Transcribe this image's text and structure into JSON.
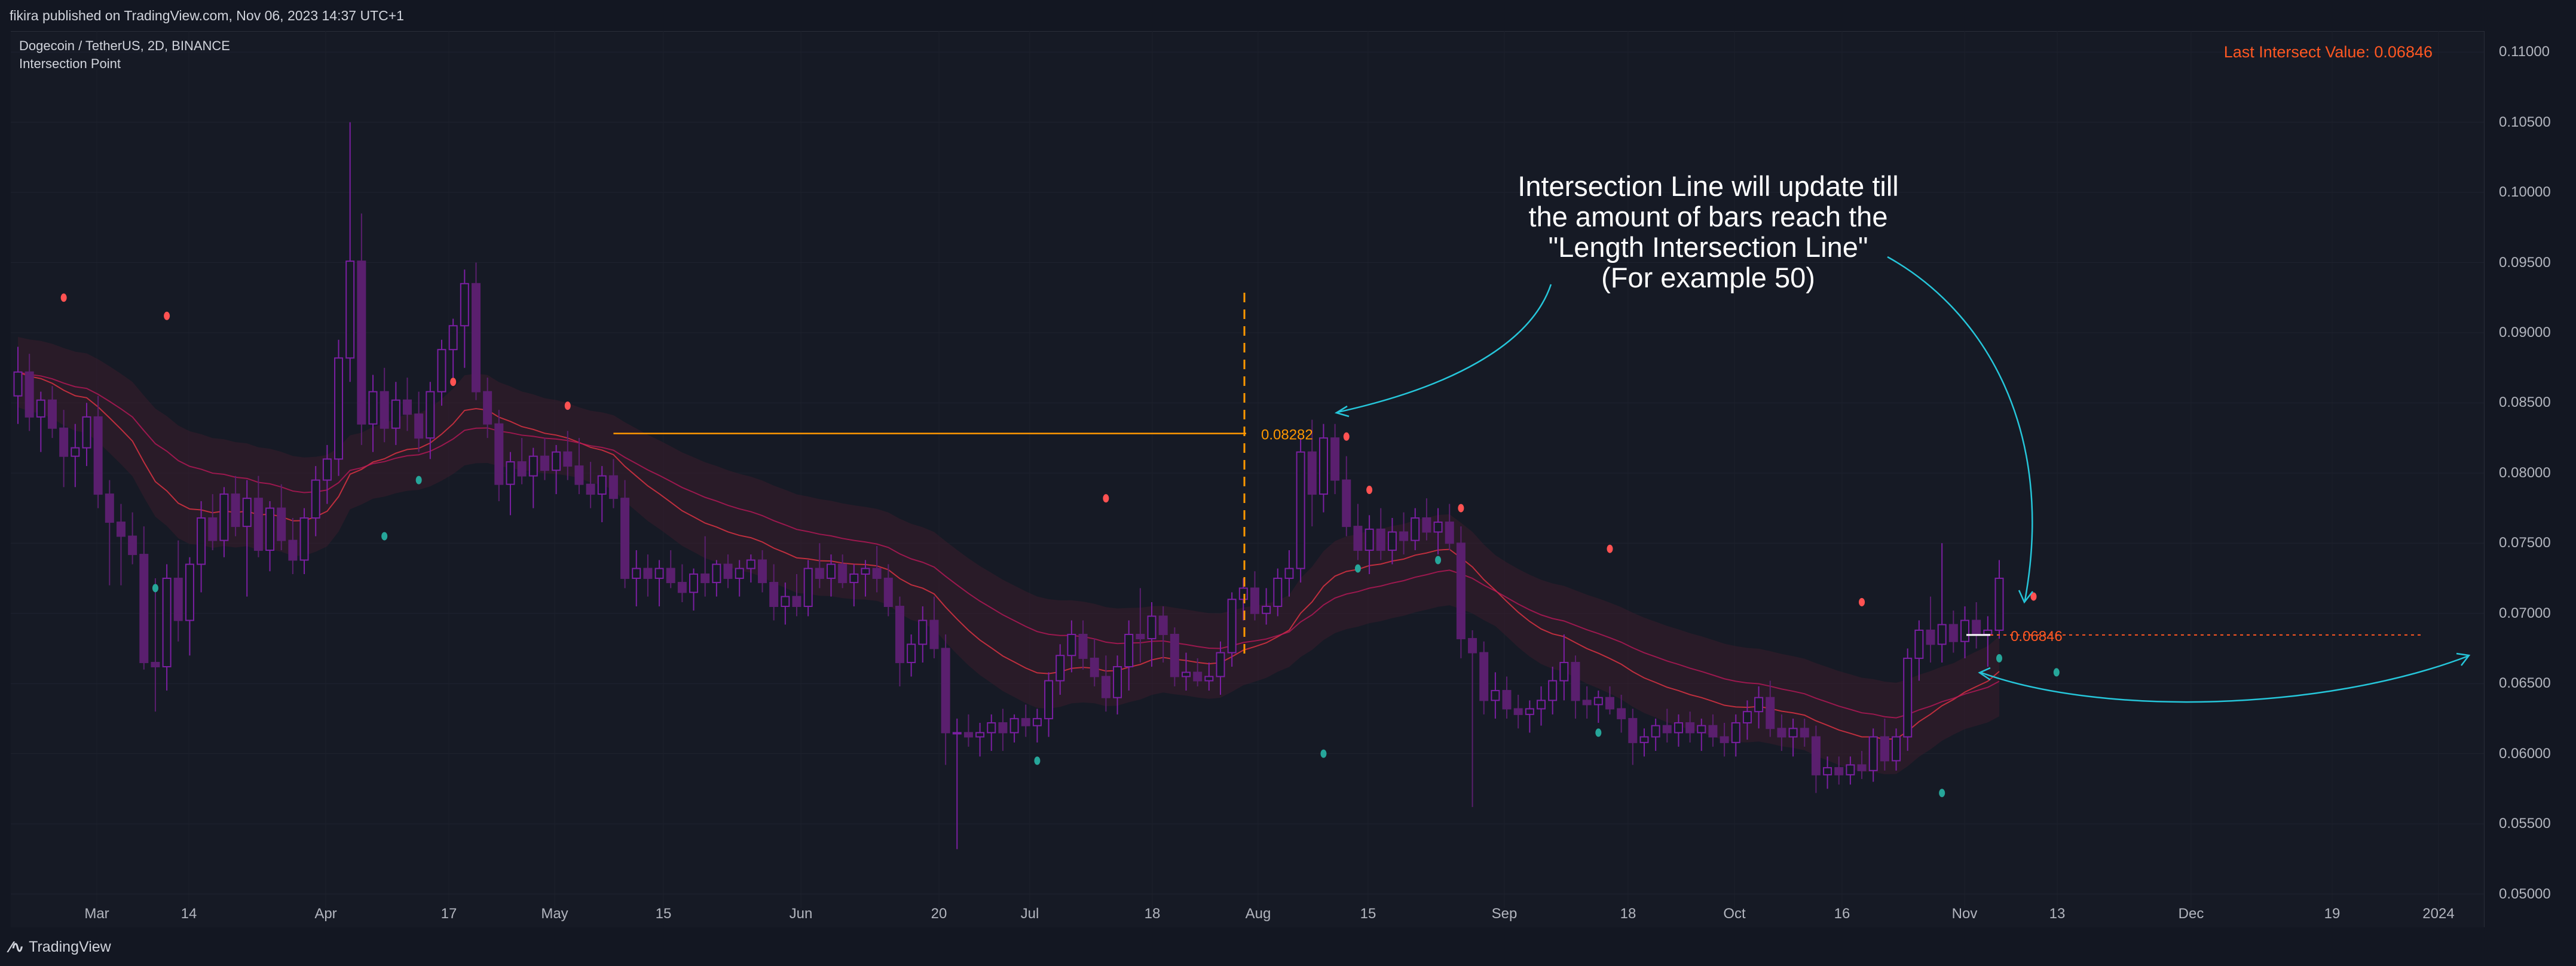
{
  "header": {
    "published": "fikira published on TradingView.com, Nov 06, 2023 14:37 UTC+1"
  },
  "legend": {
    "symbol": "Dogecoin / TetherUS, 2D, BINANCE",
    "indicator": "Intersection Point"
  },
  "last_intersect": "Last Intersect Value: 0.06846",
  "footer": {
    "brand": "TradingView",
    "logo": "tradingview-logo-icon"
  },
  "colors": {
    "bull": "#7b1fa2",
    "bear": "#5a1f6e",
    "fill_red": "#3a1d2c",
    "fill_green": "#133a35",
    "ema": "#f23645",
    "orange": "#ff9800",
    "intersect": "#ff5722",
    "cyan": "#26c6da",
    "teal": "#26a69a",
    "red_dot": "#ff5252"
  },
  "annotation": {
    "lines": [
      "Intersection Line will update till",
      "the amount of bars reach the",
      "\"Length Intersection Line\"",
      "(For example 50)"
    ]
  },
  "price_labels": {
    "intersection_high": "0.08282",
    "intersection_low": "0.06846"
  },
  "chart_data": {
    "type": "candlestick",
    "title": "Dogecoin / TetherUS, 2D, BINANCE",
    "indicator": "Intersection Point",
    "timeframe": "2D",
    "ylim": [
      0.049,
      0.1115
    ],
    "yticks": [
      "0.11000",
      "0.10500",
      "0.10000",
      "0.09500",
      "0.09000",
      "0.08500",
      "0.08000",
      "0.07500",
      "0.07000",
      "0.06500",
      "0.06000",
      "0.05500",
      "0.05000"
    ],
    "xticks": [
      "Mar",
      "14",
      "Apr",
      "17",
      "May",
      "15",
      "Jun",
      "20",
      "Jul",
      "18",
      "Aug",
      "15",
      "Sep",
      "18",
      "Oct",
      "16",
      "Nov",
      "13",
      "Dec",
      "19",
      "2024"
    ],
    "grid": true,
    "candles": [
      [
        0.0855,
        0.089,
        0.0835,
        0.0872
      ],
      [
        0.0872,
        0.0885,
        0.083,
        0.084
      ],
      [
        0.084,
        0.0858,
        0.0815,
        0.0852
      ],
      [
        0.0852,
        0.0862,
        0.0825,
        0.0832
      ],
      [
        0.0832,
        0.0845,
        0.079,
        0.0812
      ],
      [
        0.0812,
        0.0835,
        0.079,
        0.0818
      ],
      [
        0.0818,
        0.085,
        0.0805,
        0.084
      ],
      [
        0.084,
        0.0855,
        0.0775,
        0.0785
      ],
      [
        0.0785,
        0.0795,
        0.072,
        0.0765
      ],
      [
        0.0765,
        0.0778,
        0.072,
        0.0755
      ],
      [
        0.0755,
        0.0772,
        0.0735,
        0.0742
      ],
      [
        0.0742,
        0.0762,
        0.066,
        0.0665
      ],
      [
        0.0665,
        0.0725,
        0.063,
        0.0662
      ],
      [
        0.0662,
        0.0735,
        0.0645,
        0.0725
      ],
      [
        0.0725,
        0.0752,
        0.068,
        0.0695
      ],
      [
        0.0695,
        0.074,
        0.067,
        0.0735
      ],
      [
        0.0735,
        0.078,
        0.0715,
        0.0768
      ],
      [
        0.0768,
        0.0785,
        0.0745,
        0.0752
      ],
      [
        0.0752,
        0.079,
        0.074,
        0.0785
      ],
      [
        0.0785,
        0.0798,
        0.0755,
        0.0762
      ],
      [
        0.0762,
        0.0795,
        0.0712,
        0.0782
      ],
      [
        0.0782,
        0.0798,
        0.074,
        0.0745
      ],
      [
        0.0745,
        0.078,
        0.073,
        0.0775
      ],
      [
        0.0775,
        0.0792,
        0.0745,
        0.0752
      ],
      [
        0.0752,
        0.0768,
        0.0728,
        0.0738
      ],
      [
        0.0738,
        0.0775,
        0.0728,
        0.0768
      ],
      [
        0.0768,
        0.0805,
        0.0755,
        0.0795
      ],
      [
        0.0795,
        0.082,
        0.0778,
        0.081
      ],
      [
        0.081,
        0.0895,
        0.0798,
        0.0882
      ],
      [
        0.0882,
        0.105,
        0.0865,
        0.0951
      ],
      [
        0.0951,
        0.0985,
        0.082,
        0.0835
      ],
      [
        0.0835,
        0.087,
        0.0815,
        0.0858
      ],
      [
        0.0858,
        0.0875,
        0.0822,
        0.0832
      ],
      [
        0.0832,
        0.0865,
        0.082,
        0.0852
      ],
      [
        0.0852,
        0.0868,
        0.083,
        0.0842
      ],
      [
        0.0842,
        0.0858,
        0.0815,
        0.0825
      ],
      [
        0.0825,
        0.0865,
        0.081,
        0.0858
      ],
      [
        0.0858,
        0.0895,
        0.0848,
        0.0888
      ],
      [
        0.0888,
        0.091,
        0.0868,
        0.0905
      ],
      [
        0.0905,
        0.0945,
        0.0875,
        0.0935
      ],
      [
        0.0935,
        0.095,
        0.0852,
        0.0858
      ],
      [
        0.0858,
        0.0868,
        0.0825,
        0.0835
      ],
      [
        0.0835,
        0.0845,
        0.078,
        0.0792
      ],
      [
        0.0792,
        0.0815,
        0.077,
        0.0808
      ],
      [
        0.0808,
        0.0825,
        0.0792,
        0.0798
      ],
      [
        0.0798,
        0.0818,
        0.0775,
        0.0812
      ],
      [
        0.0812,
        0.0825,
        0.0795,
        0.0802
      ],
      [
        0.0802,
        0.082,
        0.0785,
        0.0815
      ],
      [
        0.0815,
        0.083,
        0.0795,
        0.0805
      ],
      [
        0.0805,
        0.0825,
        0.0785,
        0.0792
      ],
      [
        0.0792,
        0.0808,
        0.0775,
        0.0785
      ],
      [
        0.0785,
        0.0805,
        0.0765,
        0.0798
      ],
      [
        0.0798,
        0.081,
        0.0775,
        0.0782
      ],
      [
        0.0782,
        0.0795,
        0.0718,
        0.0725
      ],
      [
        0.0725,
        0.0745,
        0.0705,
        0.0732
      ],
      [
        0.0732,
        0.0742,
        0.0712,
        0.0725
      ],
      [
        0.0725,
        0.0738,
        0.0705,
        0.0732
      ],
      [
        0.0732,
        0.0745,
        0.0718,
        0.0722
      ],
      [
        0.0722,
        0.0735,
        0.0708,
        0.0715
      ],
      [
        0.0715,
        0.0732,
        0.0702,
        0.0728
      ],
      [
        0.0728,
        0.0755,
        0.0712,
        0.0722
      ],
      [
        0.0722,
        0.0738,
        0.0712,
        0.0735
      ],
      [
        0.0735,
        0.0742,
        0.0718,
        0.0725
      ],
      [
        0.0725,
        0.0738,
        0.0712,
        0.0732
      ],
      [
        0.0732,
        0.0742,
        0.0722,
        0.0738
      ],
      [
        0.0738,
        0.0745,
        0.0715,
        0.0722
      ],
      [
        0.0722,
        0.0735,
        0.0695,
        0.0705
      ],
      [
        0.0705,
        0.0722,
        0.0692,
        0.0712
      ],
      [
        0.0712,
        0.0728,
        0.0698,
        0.0705
      ],
      [
        0.0705,
        0.0738,
        0.0698,
        0.0732
      ],
      [
        0.0732,
        0.075,
        0.0718,
        0.0725
      ],
      [
        0.0725,
        0.0742,
        0.0712,
        0.0735
      ],
      [
        0.0735,
        0.0742,
        0.0718,
        0.0722
      ],
      [
        0.0722,
        0.0735,
        0.0705,
        0.0728
      ],
      [
        0.0728,
        0.0738,
        0.0712,
        0.0732
      ],
      [
        0.0732,
        0.0748,
        0.0715,
        0.0725
      ],
      [
        0.0725,
        0.0735,
        0.0698,
        0.0705
      ],
      [
        0.0705,
        0.0712,
        0.0648,
        0.0665
      ],
      [
        0.0665,
        0.0685,
        0.0655,
        0.0678
      ],
      [
        0.0678,
        0.0705,
        0.0665,
        0.0695
      ],
      [
        0.0695,
        0.0712,
        0.0668,
        0.0675
      ],
      [
        0.0675,
        0.0685,
        0.0592,
        0.0615
      ],
      [
        0.0615,
        0.0625,
        0.0532,
        0.0615
      ],
      [
        0.0615,
        0.0628,
        0.0605,
        0.0612
      ],
      [
        0.0612,
        0.0622,
        0.0598,
        0.0615
      ],
      [
        0.0615,
        0.0628,
        0.0602,
        0.0622
      ],
      [
        0.0622,
        0.0632,
        0.0602,
        0.0615
      ],
      [
        0.0615,
        0.0628,
        0.0608,
        0.0625
      ],
      [
        0.0625,
        0.0635,
        0.0612,
        0.062
      ],
      [
        0.062,
        0.0632,
        0.0608,
        0.0625
      ],
      [
        0.0625,
        0.0658,
        0.0612,
        0.0652
      ],
      [
        0.0652,
        0.0678,
        0.0642,
        0.067
      ],
      [
        0.067,
        0.0695,
        0.0658,
        0.0685
      ],
      [
        0.0685,
        0.0695,
        0.066,
        0.0668
      ],
      [
        0.0668,
        0.0682,
        0.0648,
        0.0655
      ],
      [
        0.0655,
        0.067,
        0.063,
        0.064
      ],
      [
        0.064,
        0.067,
        0.0628,
        0.0662
      ],
      [
        0.0662,
        0.0695,
        0.0645,
        0.0685
      ],
      [
        0.0685,
        0.0718,
        0.0665,
        0.0682
      ],
      [
        0.0682,
        0.0708,
        0.0662,
        0.0698
      ],
      [
        0.0698,
        0.0705,
        0.0665,
        0.0685
      ],
      [
        0.0685,
        0.069,
        0.0648,
        0.0655
      ],
      [
        0.0655,
        0.0672,
        0.0645,
        0.0658
      ],
      [
        0.0658,
        0.0668,
        0.0648,
        0.0652
      ],
      [
        0.0652,
        0.0665,
        0.0645,
        0.0655
      ],
      [
        0.0655,
        0.068,
        0.0642,
        0.0672
      ],
      [
        0.0672,
        0.0715,
        0.0662,
        0.071
      ],
      [
        0.071,
        0.0725,
        0.0695,
        0.0718
      ],
      [
        0.0718,
        0.073,
        0.0695,
        0.07
      ],
      [
        0.07,
        0.0718,
        0.0692,
        0.0705
      ],
      [
        0.0705,
        0.0732,
        0.0698,
        0.0725
      ],
      [
        0.0725,
        0.0745,
        0.0712,
        0.0732
      ],
      [
        0.0732,
        0.0825,
        0.0722,
        0.0815
      ],
      [
        0.0815,
        0.0838,
        0.0762,
        0.0785
      ],
      [
        0.0785,
        0.0835,
        0.0772,
        0.0825
      ],
      [
        0.0825,
        0.0835,
        0.0785,
        0.0795
      ],
      [
        0.0795,
        0.0812,
        0.0755,
        0.0762
      ],
      [
        0.0762,
        0.0778,
        0.0738,
        0.0745
      ],
      [
        0.0745,
        0.077,
        0.0728,
        0.076
      ],
      [
        0.076,
        0.0775,
        0.0738,
        0.0745
      ],
      [
        0.0745,
        0.0768,
        0.0735,
        0.0758
      ],
      [
        0.0758,
        0.0772,
        0.0742,
        0.0752
      ],
      [
        0.0752,
        0.0775,
        0.0745,
        0.0768
      ],
      [
        0.0768,
        0.0782,
        0.0752,
        0.0758
      ],
      [
        0.0758,
        0.0775,
        0.0742,
        0.0765
      ],
      [
        0.0765,
        0.0778,
        0.0745,
        0.075
      ],
      [
        0.075,
        0.0762,
        0.0668,
        0.0682
      ],
      [
        0.0682,
        0.0688,
        0.0562,
        0.0672
      ],
      [
        0.0672,
        0.068,
        0.0628,
        0.0638
      ],
      [
        0.0638,
        0.0658,
        0.0625,
        0.0645
      ],
      [
        0.0645,
        0.0655,
        0.0625,
        0.0632
      ],
      [
        0.0632,
        0.0642,
        0.0618,
        0.0628
      ],
      [
        0.0628,
        0.0638,
        0.0615,
        0.0632
      ],
      [
        0.0632,
        0.0648,
        0.062,
        0.0638
      ],
      [
        0.0638,
        0.0662,
        0.0628,
        0.0652
      ],
      [
        0.0652,
        0.0685,
        0.0638,
        0.0665
      ],
      [
        0.0665,
        0.067,
        0.0625,
        0.0638
      ],
      [
        0.0638,
        0.0648,
        0.0625,
        0.0635
      ],
      [
        0.0635,
        0.0645,
        0.0622,
        0.064
      ],
      [
        0.064,
        0.0648,
        0.0628,
        0.0632
      ],
      [
        0.0632,
        0.0642,
        0.0615,
        0.0625
      ],
      [
        0.0625,
        0.0632,
        0.0592,
        0.0608
      ],
      [
        0.0608,
        0.0618,
        0.0598,
        0.0612
      ],
      [
        0.0612,
        0.0625,
        0.0602,
        0.062
      ],
      [
        0.062,
        0.0632,
        0.0608,
        0.0615
      ],
      [
        0.0615,
        0.0628,
        0.0605,
        0.0622
      ],
      [
        0.0622,
        0.063,
        0.0608,
        0.0615
      ],
      [
        0.0615,
        0.0625,
        0.0602,
        0.062
      ],
      [
        0.062,
        0.0628,
        0.0605,
        0.0612
      ],
      [
        0.0612,
        0.0622,
        0.0598,
        0.0608
      ],
      [
        0.0608,
        0.0628,
        0.0598,
        0.0622
      ],
      [
        0.0622,
        0.0638,
        0.061,
        0.063
      ],
      [
        0.063,
        0.0648,
        0.0618,
        0.064
      ],
      [
        0.064,
        0.0652,
        0.0612,
        0.0618
      ],
      [
        0.0618,
        0.0628,
        0.0602,
        0.0612
      ],
      [
        0.0612,
        0.0625,
        0.0598,
        0.0618
      ],
      [
        0.0618,
        0.0625,
        0.0605,
        0.0612
      ],
      [
        0.0612,
        0.062,
        0.0572,
        0.0585
      ],
      [
        0.0585,
        0.0598,
        0.0575,
        0.059
      ],
      [
        0.059,
        0.0598,
        0.0578,
        0.0585
      ],
      [
        0.0585,
        0.0598,
        0.0578,
        0.0592
      ],
      [
        0.0592,
        0.0602,
        0.0582,
        0.0588
      ],
      [
        0.0588,
        0.0618,
        0.058,
        0.0612
      ],
      [
        0.0612,
        0.0625,
        0.0588,
        0.0595
      ],
      [
        0.0595,
        0.0618,
        0.0588,
        0.0612
      ],
      [
        0.0612,
        0.0675,
        0.0602,
        0.0668
      ],
      [
        0.0668,
        0.0695,
        0.0652,
        0.0688
      ],
      [
        0.0688,
        0.0712,
        0.0665,
        0.0678
      ],
      [
        0.0678,
        0.075,
        0.0665,
        0.0692
      ],
      [
        0.0692,
        0.0702,
        0.0672,
        0.068
      ],
      [
        0.068,
        0.0705,
        0.0668,
        0.0695
      ],
      [
        0.0695,
        0.0708,
        0.0675,
        0.0685
      ],
      [
        0.0685,
        0.0698,
        0.0662,
        0.0688
      ],
      [
        0.0688,
        0.0738,
        0.0682,
        0.0725
      ]
    ],
    "intersection_line": {
      "value": 0.08282,
      "label": "0.08282"
    },
    "last_intersect_value": {
      "value": 0.06846,
      "label": "0.06846"
    }
  }
}
